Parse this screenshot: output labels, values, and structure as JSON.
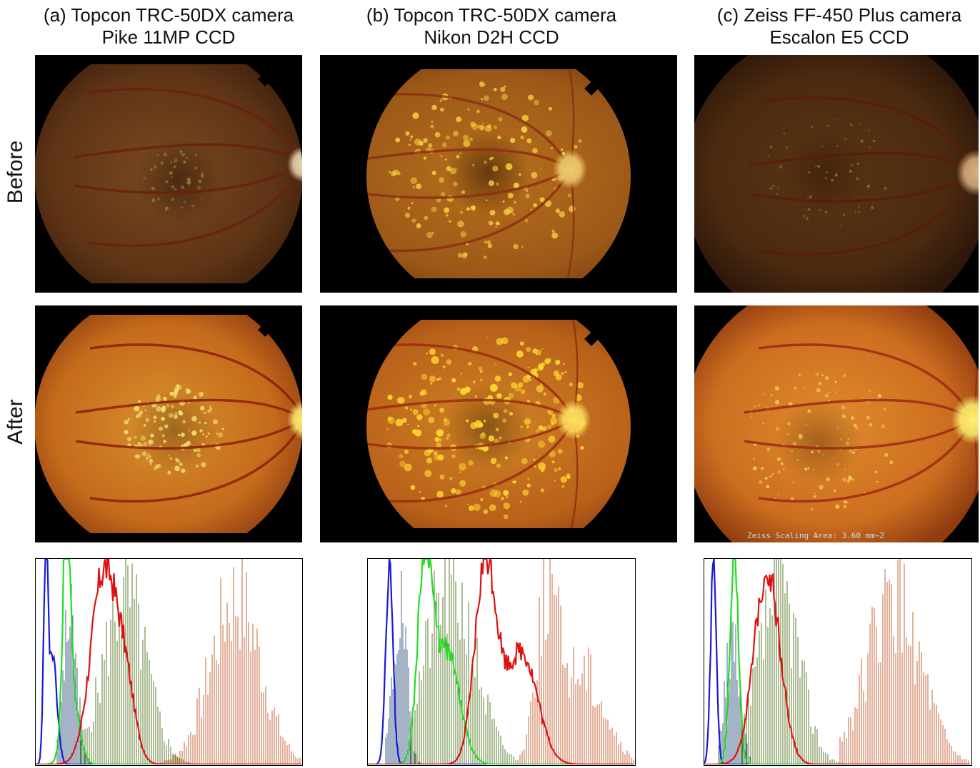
{
  "columns": [
    {
      "title_line1": "(a) Topcon TRC-50DX camera",
      "title_line2": "Pike 11MP CCD"
    },
    {
      "title_line1": "(b) Topcon TRC-50DX camera",
      "title_line2": "Nikon D2H CCD"
    },
    {
      "title_line1": "(c) Zeiss FF-450 Plus camera",
      "title_line2": "Escalon E5 CCD"
    }
  ],
  "rows": {
    "before": "Before",
    "after": "After"
  },
  "overlay": {
    "zeiss_scaling": "Zeiss Scaling Area: 3.60 mm~2"
  },
  "colors": {
    "blue": "#1a1ad6",
    "green": "#22dd22",
    "red": "#e01010",
    "blue_hatch": "#4a6a8c",
    "green_hatch": "#5b7d2e",
    "red_hatch": "#c8643a"
  }
}
